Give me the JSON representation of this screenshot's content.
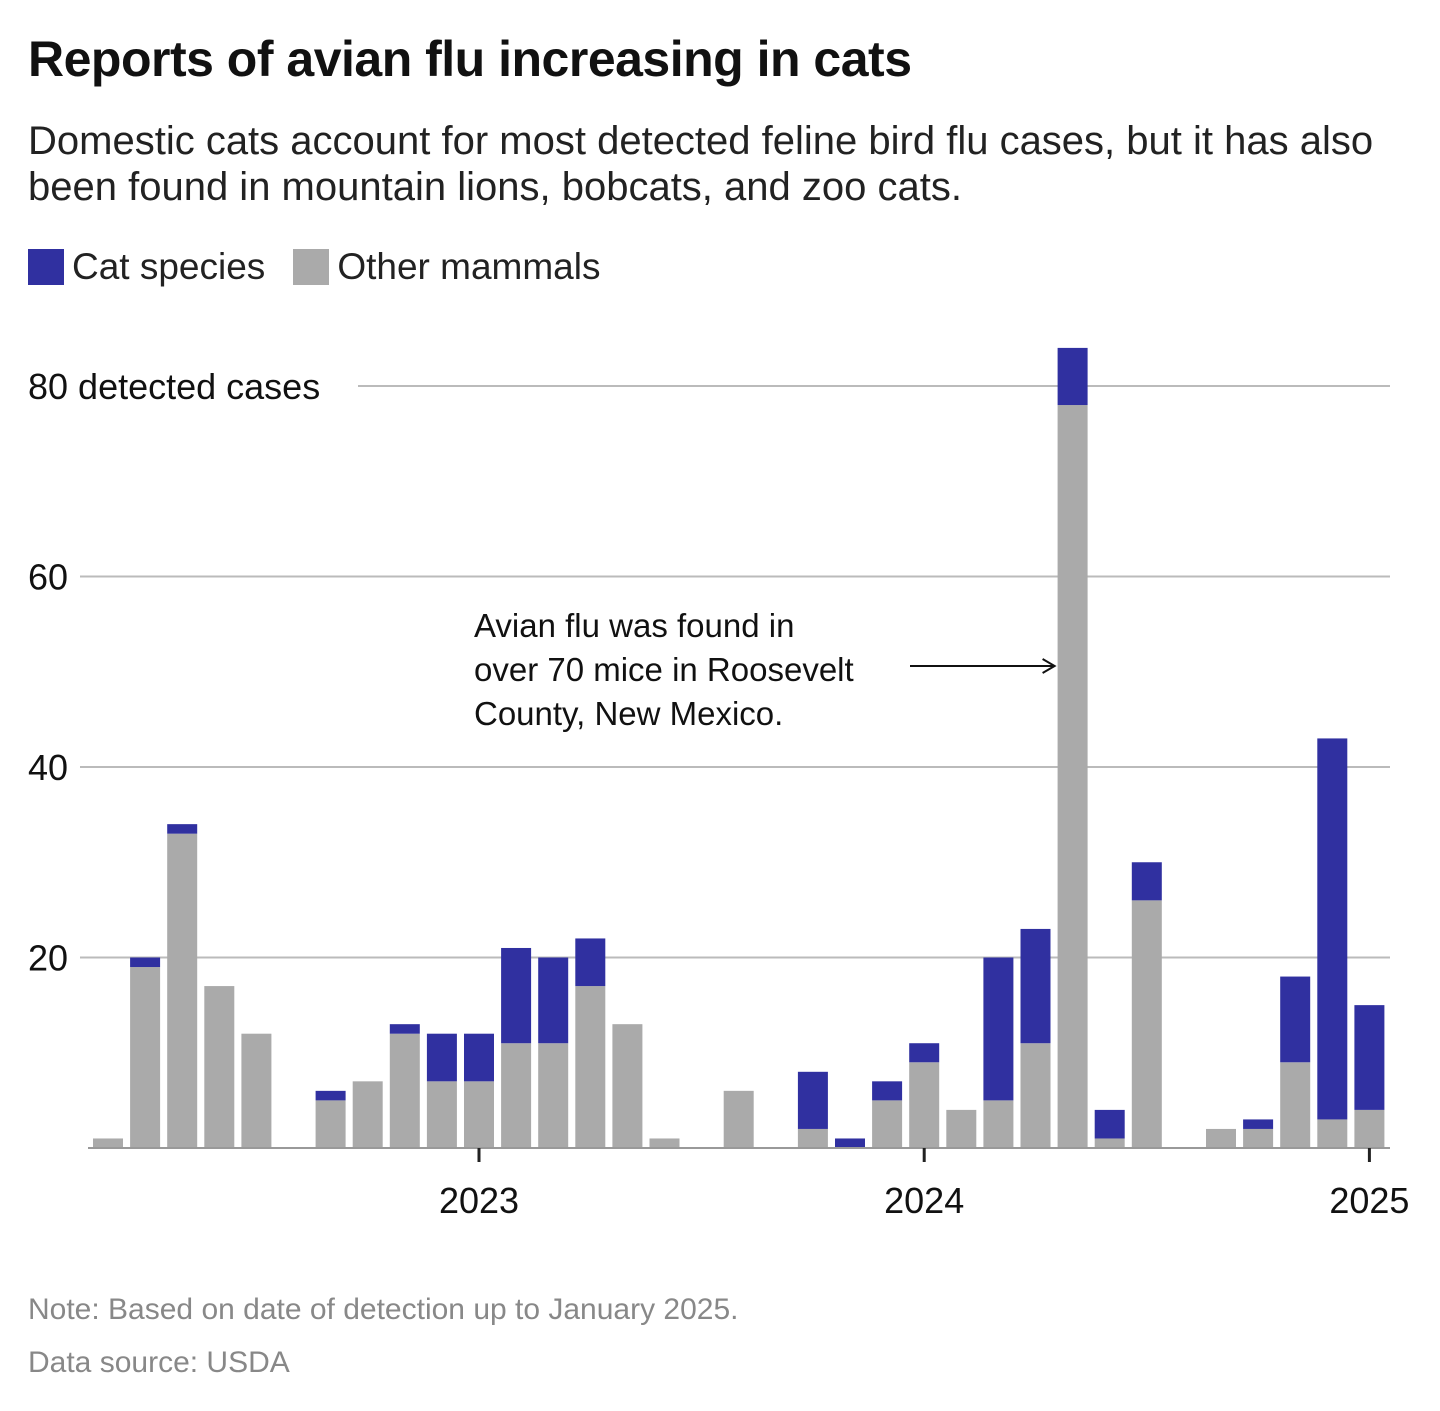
{
  "title": "Reports of avian flu increasing in cats",
  "subtitle": "Domestic cats account for most detected feline bird flu cases, but it has also been found in mountain lions, bobcats, and zoo cats.",
  "note": "Note: Based on date of detection up to January 2025.",
  "source": "Data source: USDA",
  "chart_data": {
    "type": "bar",
    "stacked": true,
    "categories": [
      "2022-03",
      "2022-04",
      "2022-05",
      "2022-06",
      "2022-07",
      "2022-08",
      "2022-09",
      "2022-10",
      "2022-11",
      "2022-12",
      "2023-01",
      "2023-02",
      "2023-03",
      "2023-04",
      "2023-05",
      "2023-06",
      "2023-07",
      "2023-08",
      "2023-09",
      "2023-10",
      "2023-11",
      "2023-12",
      "2024-01",
      "2024-02",
      "2024-03",
      "2024-04",
      "2024-05",
      "2024-06",
      "2024-07",
      "2024-08",
      "2024-09",
      "2024-10",
      "2024-11",
      "2024-12",
      "2025-01"
    ],
    "series": [
      {
        "name": "Other mammals",
        "color": "#aaaaaa",
        "values": [
          1,
          19,
          33,
          17,
          12,
          0,
          5,
          7,
          12,
          7,
          7,
          11,
          11,
          17,
          13,
          1,
          0,
          6,
          0,
          2,
          0,
          5,
          9,
          4,
          5,
          11,
          78,
          1,
          26,
          0,
          2,
          2,
          9,
          3,
          4
        ]
      },
      {
        "name": "Cat species",
        "color": "#3030a0",
        "values": [
          0,
          1,
          1,
          0,
          0,
          0,
          1,
          0,
          1,
          5,
          5,
          10,
          9,
          5,
          0,
          0,
          0,
          0,
          0,
          6,
          1,
          2,
          2,
          0,
          15,
          12,
          6,
          3,
          4,
          0,
          0,
          1,
          9,
          40,
          11
        ]
      }
    ],
    "legend_order": [
      "Cat species",
      "Other mammals"
    ],
    "legend_position": "top-left",
    "ylim": [
      0,
      84
    ],
    "yticks": [
      20,
      40,
      60,
      80
    ],
    "ytick_labels": [
      "20",
      "40",
      "60",
      "80 detected cases"
    ],
    "xticks": [
      {
        "at": "2023-01",
        "label": "2023"
      },
      {
        "at": "2024-01",
        "label": "2024"
      },
      {
        "at": "2025-01",
        "label": "2025"
      }
    ],
    "grid": "horizontal",
    "annotation": {
      "at": "2024-05",
      "lines": [
        "Avian flu was found in",
        "over 70 mice in Roosevelt",
        "County, New Mexico."
      ]
    }
  }
}
